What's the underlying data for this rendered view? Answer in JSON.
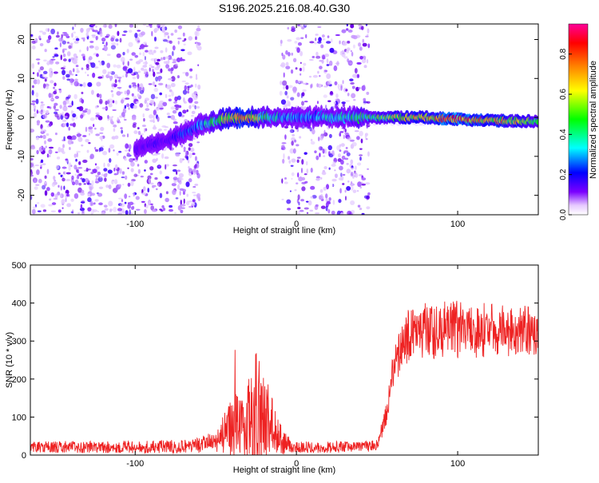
{
  "title": "S196.2025.216.08.40.G30",
  "chart_data": [
    {
      "type": "heatmap",
      "title": "S196.2025.216.08.40.G30",
      "xlabel": "Height of straight line (km)",
      "ylabel": "Frequency (Hz)",
      "xlim": [
        -165,
        150
      ],
      "ylim": [
        -25,
        24
      ],
      "x_ticks": [
        -100,
        0,
        100
      ],
      "x_tick_labels": [
        "-100",
        "0",
        "100"
      ],
      "y_ticks": [
        -20,
        -10,
        0,
        10,
        20
      ],
      "y_tick_labels": [
        "-20",
        "-10",
        "0",
        "10",
        "20"
      ],
      "colorbar": {
        "label": "Normalized spectral amplitude",
        "range": [
          0,
          0.95
        ],
        "ticks": [
          0.0,
          0.2,
          0.4,
          0.6,
          0.8
        ],
        "tick_labels": [
          "0.0",
          "0.2",
          "0.4",
          "0.6",
          "0.8"
        ],
        "colors": [
          "#ffffff",
          "#7b00ff",
          "#0000ff",
          "#00ffff",
          "#00ff00",
          "#ffff00",
          "#ff8000",
          "#ff0000",
          "#ff00a0"
        ]
      },
      "noise_segments": [
        {
          "x": [
            -165,
            -60
          ],
          "density": 1.0
        },
        {
          "x": [
            -10,
            45
          ],
          "density": 0.8
        }
      ],
      "ridge": {
        "x": [
          -100,
          -90,
          -80,
          -70,
          -60,
          -50,
          -40,
          -30,
          -20,
          -10,
          0,
          20,
          45,
          60,
          80,
          100,
          120,
          150
        ],
        "frequency": [
          -8,
          -7,
          -6,
          -4,
          -2,
          -1,
          0,
          0,
          0,
          0,
          0,
          0,
          0,
          0,
          0,
          -0.5,
          -0.8,
          -1
        ],
        "amplitude": [
          0.15,
          0.2,
          0.2,
          0.3,
          0.35,
          0.5,
          0.7,
          0.8,
          0.5,
          0.4,
          0.35,
          0.4,
          0.5,
          0.6,
          0.75,
          0.9,
          0.75,
          0.6
        ]
      }
    },
    {
      "type": "line",
      "xlabel": "Height of straight line (km)",
      "ylabel": "SNR (10 * v/v)",
      "xlim": [
        -165,
        150
      ],
      "ylim": [
        0,
        500
      ],
      "x_ticks": [
        -100,
        0,
        100
      ],
      "x_tick_labels": [
        "-100",
        "0",
        "100"
      ],
      "y_ticks": [
        0,
        100,
        200,
        300,
        400,
        500
      ],
      "y_tick_labels": [
        "0",
        "100",
        "200",
        "300",
        "400",
        "500"
      ],
      "line_color": "#ee2222",
      "envelope": {
        "x": [
          -165,
          -80,
          -60,
          -50,
          -40,
          -30,
          -25,
          -20,
          -15,
          -12,
          -8,
          0,
          20,
          40,
          50,
          55,
          60,
          65,
          70,
          80,
          100,
          120,
          150
        ],
        "base": [
          15,
          15,
          18,
          25,
          40,
          50,
          60,
          55,
          45,
          30,
          20,
          15,
          15,
          15,
          20,
          80,
          200,
          260,
          290,
          295,
          300,
          300,
          300
        ],
        "amp": [
          30,
          35,
          40,
          60,
          160,
          200,
          330,
          220,
          170,
          110,
          60,
          30,
          30,
          30,
          30,
          60,
          100,
          120,
          140,
          150,
          160,
          140,
          130
        ]
      }
    }
  ]
}
